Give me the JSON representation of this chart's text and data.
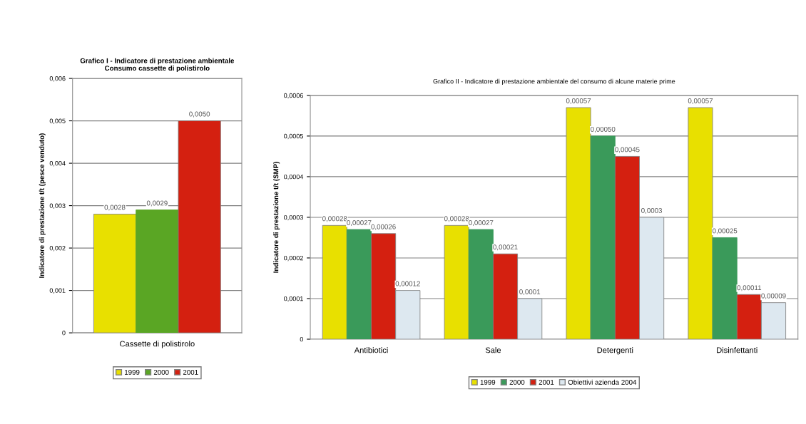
{
  "chart_data": [
    {
      "type": "bar",
      "title": "Grafico I - Indicatore di prestazione ambientale\nConsumo cassette di polistirolo",
      "ylabel": "Indicatore di prestazione t/t (pesce venduto)",
      "categories": [
        "Cassette di polistirolo"
      ],
      "series": [
        {
          "name": "1999",
          "color": "#e8e000",
          "values": [
            0.0028
          ],
          "value_labels": [
            "0,0028"
          ]
        },
        {
          "name": "2000",
          "color": "#5aa624",
          "values": [
            0.0029
          ],
          "value_labels": [
            "0,0029"
          ]
        },
        {
          "name": "2001",
          "color": "#d42010",
          "values": [
            0.005
          ],
          "value_labels": [
            "0,0050"
          ]
        }
      ],
      "ylim": [
        0,
        0.006
      ],
      "yticks": [
        0,
        {
          "value": 0.001,
          "label": "0,001"
        },
        {
          "value": 0.002,
          "label": "0,002"
        },
        {
          "value": 0.003,
          "label": "0,003"
        },
        {
          "value": 0.004,
          "label": "0,004"
        },
        {
          "value": 0.005,
          "label": "0,005"
        },
        {
          "value": 0.006,
          "label": "0,006"
        }
      ],
      "grid": "y",
      "legend": "bottom"
    },
    {
      "type": "bar",
      "title": "Grafico II - Indicatore di prestazione ambientale del consumo di alcune materie prime",
      "ylabel": "Indicatore di prestazione t/t (SMP)",
      "categories": [
        "Antibiotici",
        "Sale",
        "Detergenti",
        "Disinfettanti"
      ],
      "series": [
        {
          "name": "1999",
          "color": "#e8e000",
          "values": [
            0.00028,
            0.00028,
            0.00057,
            0.00057
          ],
          "value_labels": [
            "0,00028",
            "0,00028",
            "0,00057",
            "0,00057"
          ]
        },
        {
          "name": "2000",
          "color": "#3a9a5a",
          "values": [
            0.00027,
            0.00027,
            0.0005,
            0.00025
          ],
          "value_labels": [
            "0,00027",
            "0,00027",
            "0,00050",
            "0,00025"
          ]
        },
        {
          "name": "2001",
          "color": "#d42010",
          "values": [
            0.00026,
            0.00021,
            0.00045,
            0.00011
          ],
          "value_labels": [
            "0,00026",
            "0,00021",
            "0,00045",
            "0,00011"
          ]
        },
        {
          "name": "Obiettivi azienda 2004",
          "color": "#dde8f0",
          "values": [
            0.00012,
            0.0001,
            0.0003,
            9e-05
          ],
          "value_labels": [
            "0,00012",
            "0,0001",
            "0,0003",
            "0,00009"
          ]
        }
      ],
      "ylim": [
        0,
        0.0006
      ],
      "yticks": [
        0,
        {
          "value": 0.0001,
          "label": "0,0001"
        },
        {
          "value": 0.0002,
          "label": "0,0002"
        },
        {
          "value": 0.0003,
          "label": "0,0003"
        },
        {
          "value": 0.0004,
          "label": "0,0004"
        },
        {
          "value": 0.0005,
          "label": "0,0005"
        },
        {
          "value": 0.0006,
          "label": "0,0006"
        }
      ],
      "grid": "y",
      "legend": "bottom"
    }
  ]
}
